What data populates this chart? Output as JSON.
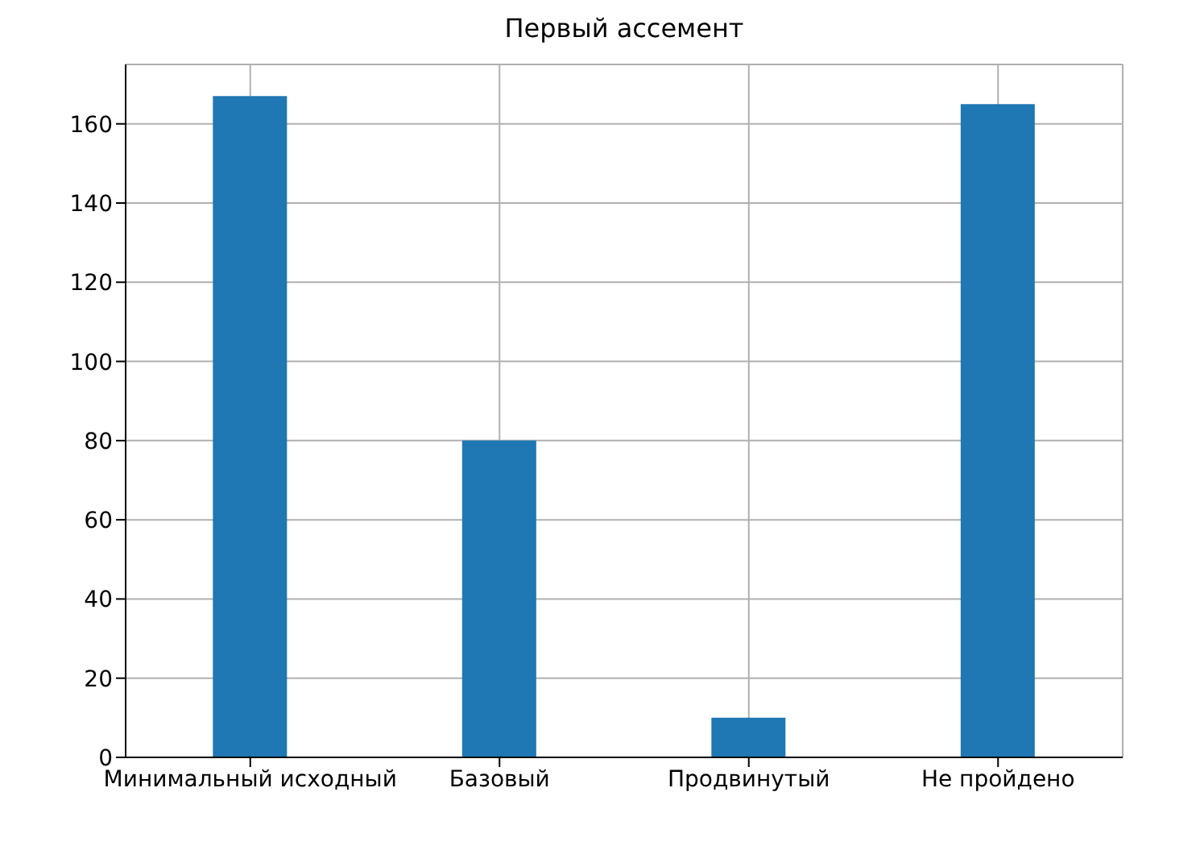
{
  "chart_data": {
    "type": "bar",
    "title": "Первый ассемент",
    "categories": [
      "Минимальный исходный",
      "Базовый",
      "Продвинутый",
      "Не пройдено"
    ],
    "values": [
      167,
      80,
      10,
      165
    ],
    "color": "#1f77b4",
    "ylim": [
      0,
      175
    ],
    "yticks": [
      0,
      20,
      40,
      60,
      80,
      100,
      120,
      140,
      160
    ],
    "grid": true
  }
}
